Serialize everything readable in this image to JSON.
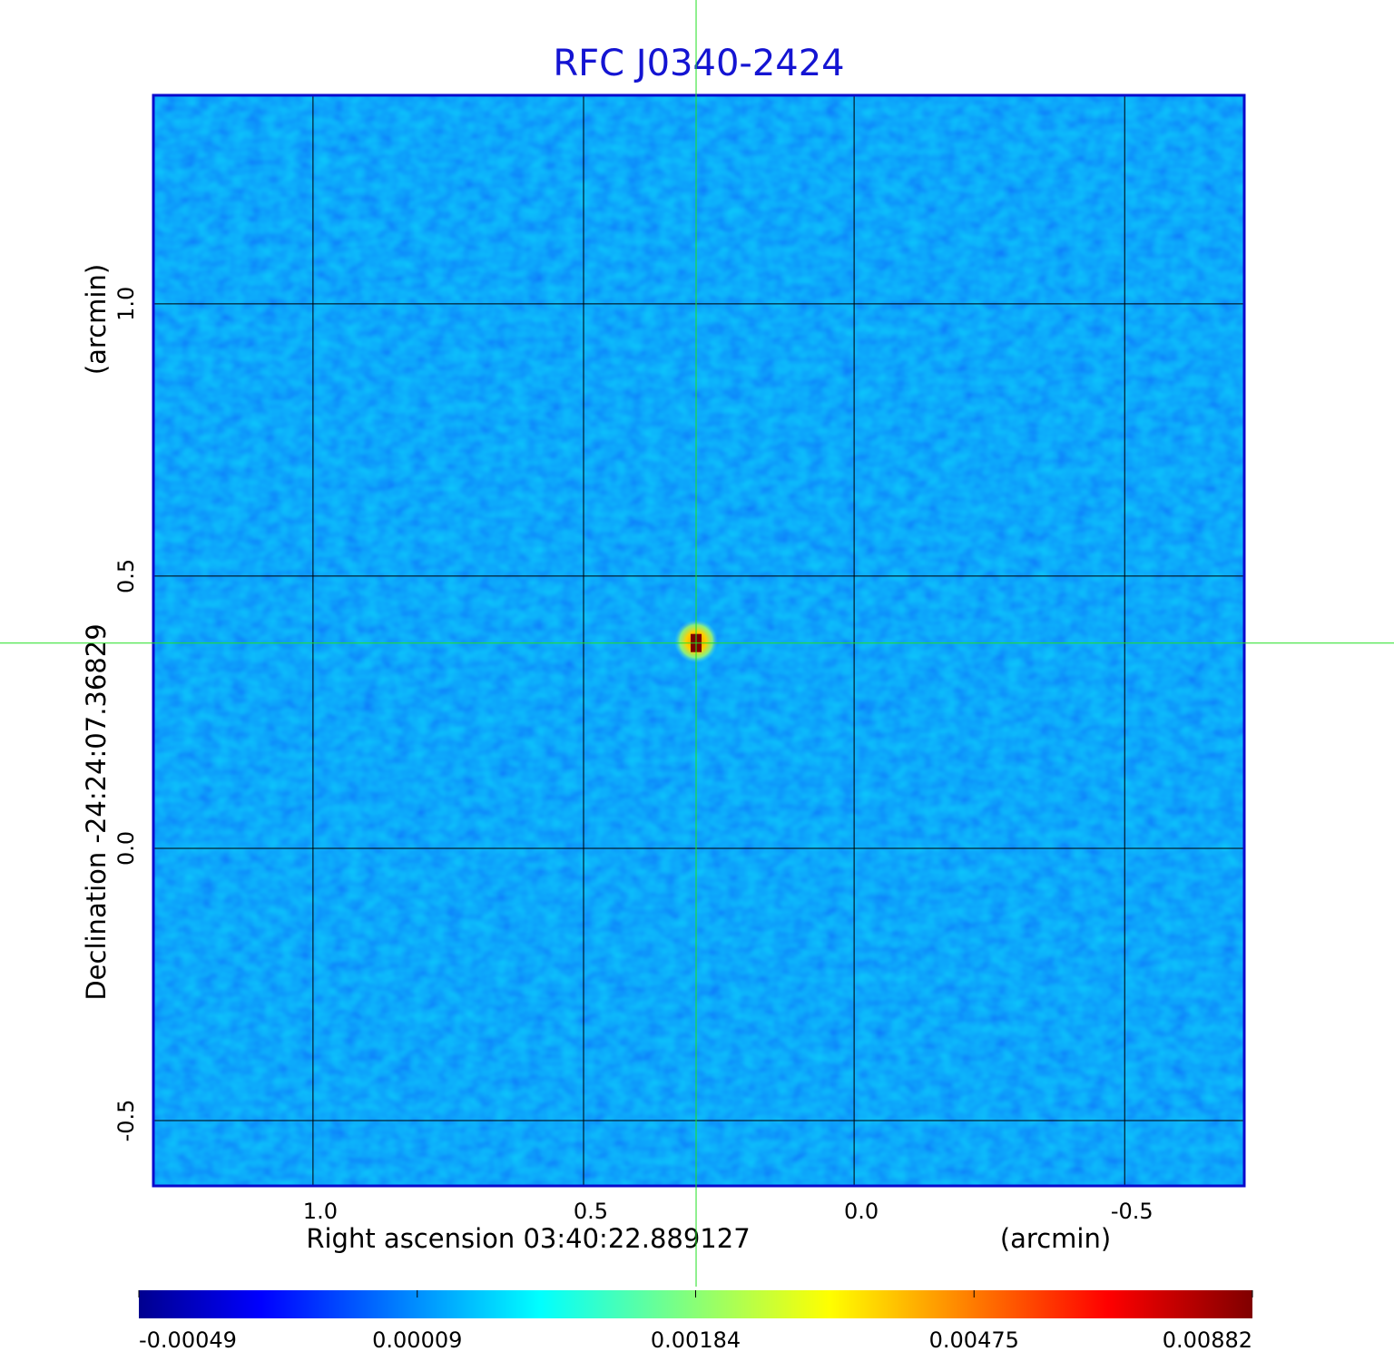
{
  "chart_data": {
    "type": "image",
    "title": "RFC J0340-2424",
    "x_label": "Right ascension  03:40:22.889127",
    "x_unit": "(arcmin)",
    "y_label": "Declination  -24:24:07.36829",
    "y_unit": "(arcmin)",
    "xlim": [
      1.295,
      -0.721
    ],
    "ylim": [
      -0.62,
      1.383
    ],
    "xticks": [
      {
        "value": 1.0,
        "label": "1.0"
      },
      0.5,
      {
        "value": 0.0,
        "label": "0.0"
      },
      -0.5
    ],
    "yticks": [
      -0.5,
      {
        "value": 0.0,
        "label": "0.0"
      },
      0.5,
      {
        "value": 1.0,
        "label": "1.0"
      }
    ],
    "grid": true,
    "colormap": "jet",
    "source": {
      "x": 0.292,
      "y": 0.377,
      "peak": 0.00882
    },
    "colorbar": {
      "ticks": [
        -0.00049,
        9e-05,
        0.00184,
        0.00475,
        0.00882
      ]
    }
  }
}
